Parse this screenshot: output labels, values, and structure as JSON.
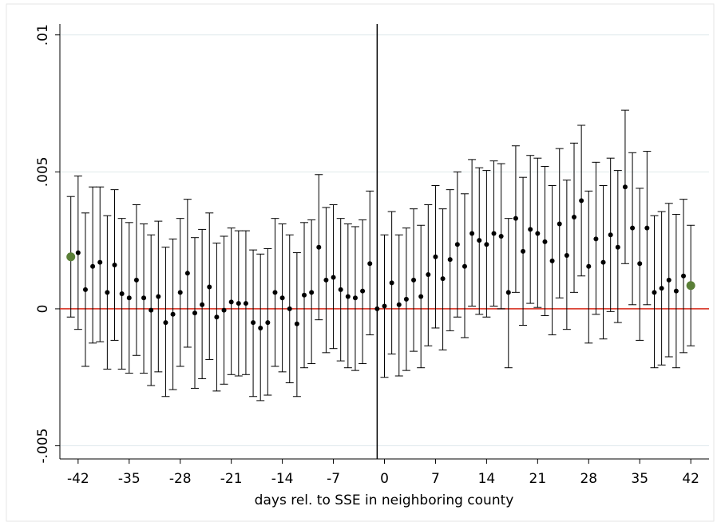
{
  "chart_data": {
    "type": "errorbar",
    "xlabel": "days rel. to SSE in neighboring county",
    "x": [
      -43,
      -42,
      -41,
      -40,
      -39,
      -38,
      -37,
      -36,
      -35,
      -34,
      -33,
      -32,
      -31,
      -30,
      -29,
      -28,
      -27,
      -26,
      -25,
      -24,
      -23,
      -22,
      -21,
      -20,
      -19,
      -18,
      -17,
      -16,
      -15,
      -14,
      -13,
      -12,
      -11,
      -10,
      -9,
      -8,
      -7,
      -6,
      -5,
      -4,
      -3,
      -2,
      -1,
      0,
      1,
      2,
      3,
      4,
      5,
      6,
      7,
      8,
      9,
      10,
      11,
      12,
      13,
      14,
      15,
      16,
      17,
      18,
      19,
      20,
      21,
      22,
      23,
      24,
      25,
      26,
      27,
      28,
      29,
      30,
      31,
      32,
      33,
      34,
      35,
      36,
      37,
      38,
      39,
      40,
      41,
      42
    ],
    "values": [
      0.0019,
      0.00205,
      0.0007,
      0.00155,
      0.0017,
      0.0006,
      0.0016,
      0.00055,
      0.0004,
      0.00105,
      0.0004,
      -5e-05,
      0.00045,
      -0.0005,
      -0.0002,
      0.0006,
      0.0013,
      -0.00015,
      0.00015,
      0.0008,
      -0.0003,
      -5e-05,
      0.00025,
      0.0002,
      0.0002,
      -0.0005,
      -0.0007,
      -0.0005,
      0.0006,
      0.0004,
      0.0,
      -0.00055,
      0.0005,
      0.0006,
      0.00225,
      0.00105,
      0.00115,
      0.0007,
      0.00045,
      0.0004,
      0.00065,
      0.00165,
      0,
      0.0001,
      0.00095,
      0.00015,
      0.00035,
      0.00105,
      0.00045,
      0.00125,
      0.0019,
      0.0011,
      0.0018,
      0.00235,
      0.00155,
      0.00275,
      0.0025,
      0.00235,
      0.00275,
      0.00265,
      0.0006,
      0.0033,
      0.0021,
      0.0029,
      0.00275,
      0.00245,
      0.00175,
      0.0031,
      0.00195,
      0.00335,
      0.00395,
      0.00155,
      0.00255,
      0.0017,
      0.0027,
      0.00225,
      0.00445,
      0.00295,
      0.00165,
      0.00295,
      0.0006,
      0.00075,
      0.00105,
      0.00065,
      0.0012,
      0.00085
    ],
    "ci_high": [
      0.0041,
      0.00485,
      0.0035,
      0.00445,
      0.00445,
      0.0034,
      0.00435,
      0.0033,
      0.00315,
      0.0038,
      0.0031,
      0.0027,
      0.0032,
      0.00225,
      0.00255,
      0.0033,
      0.004,
      0.0026,
      0.0029,
      0.0035,
      0.0024,
      0.00265,
      0.00295,
      0.00285,
      0.00285,
      0.00215,
      0.002,
      0.0022,
      0.0033,
      0.0031,
      0.0027,
      0.00205,
      0.00315,
      0.00325,
      0.0049,
      0.0037,
      0.0038,
      0.0033,
      0.0031,
      0.003,
      0.00325,
      0.0043,
      null,
      0.0027,
      0.00355,
      0.0027,
      0.00295,
      0.00365,
      0.00305,
      0.0038,
      0.0045,
      0.00365,
      0.00435,
      0.005,
      0.0042,
      0.00545,
      0.00515,
      0.00505,
      0.0054,
      0.0053,
      0.0033,
      0.00595,
      0.0048,
      0.0056,
      0.0055,
      0.0052,
      0.0045,
      0.00585,
      0.0047,
      0.00605,
      0.0067,
      0.0043,
      0.00535,
      0.0045,
      0.0055,
      0.00505,
      0.00725,
      0.0057,
      0.0044,
      0.00575,
      0.0034,
      0.00355,
      0.00385,
      0.00345,
      0.004,
      0.00305
    ],
    "ci_low": [
      -0.0003,
      -0.00075,
      -0.0021,
      -0.00125,
      -0.0012,
      -0.0022,
      -0.00115,
      -0.0022,
      -0.00235,
      -0.0017,
      -0.00235,
      -0.0028,
      -0.0023,
      -0.0032,
      -0.00295,
      -0.0021,
      -0.0014,
      -0.0029,
      -0.00255,
      -0.00185,
      -0.003,
      -0.00275,
      -0.0024,
      -0.00245,
      -0.0024,
      -0.0032,
      -0.00335,
      -0.00315,
      -0.0021,
      -0.0023,
      -0.0027,
      -0.0032,
      -0.00215,
      -0.002,
      -0.0004,
      -0.0016,
      -0.00145,
      -0.0019,
      -0.00215,
      -0.00225,
      -0.002,
      -0.00095,
      null,
      -0.0025,
      -0.00165,
      -0.00245,
      -0.00225,
      -0.00155,
      -0.00215,
      -0.00135,
      -0.0007,
      -0.0015,
      -0.0008,
      -0.0003,
      -0.00105,
      0.0001,
      -0.0002,
      -0.0003,
      0.0001,
      0.0,
      -0.00215,
      0.0006,
      -0.0006,
      0.0002,
      5e-05,
      -0.00025,
      -0.00095,
      0.0004,
      -0.00075,
      0.0006,
      0.0012,
      -0.00125,
      -0.0002,
      -0.0011,
      -0.0001,
      -0.0005,
      0.00165,
      0.00015,
      -0.00115,
      0.00015,
      -0.00215,
      -0.00205,
      -0.00175,
      -0.00215,
      -0.0016,
      -0.00135
    ],
    "color": "#000000",
    "endpoint_color": "#5a7f37",
    "hline": 0,
    "hline_color": "#d62718",
    "vline": -1,
    "vline_color": "#000000",
    "xlim": [
      -44.5,
      44.5
    ],
    "xticks": [
      -42,
      -35,
      -28,
      -21,
      -14,
      -7,
      0,
      7,
      14,
      21,
      28,
      35,
      42
    ],
    "ylim": [
      -0.00548,
      0.0104
    ],
    "yticks": [
      {
        "value": -0.005,
        "label": "-.005"
      },
      {
        "value": 0,
        "label": "0"
      },
      {
        "value": 0.005,
        "label": ".005"
      },
      {
        "value": 0.01,
        "label": ".01"
      }
    ],
    "grid": true
  }
}
